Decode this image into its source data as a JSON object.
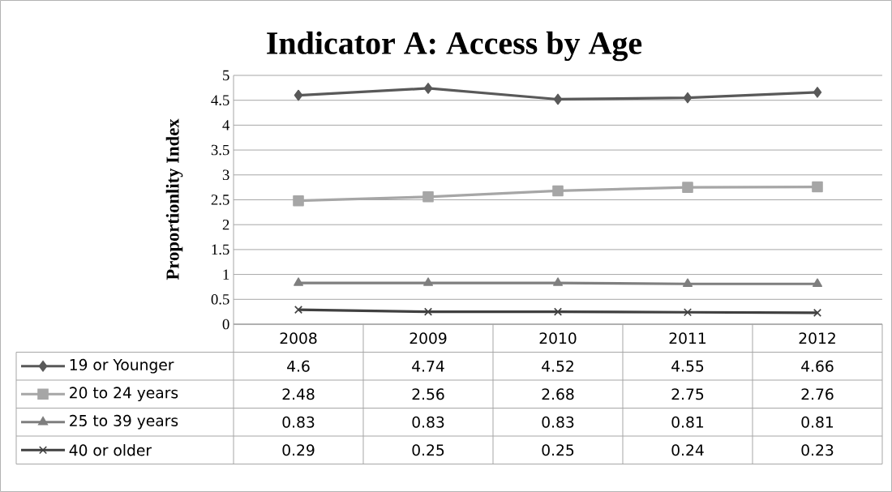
{
  "chart_data": {
    "type": "line",
    "title": "Indicator A: Access by Age",
    "ylabel": "Proportionlity Index",
    "categories": [
      "2008",
      "2009",
      "2010",
      "2011",
      "2012"
    ],
    "series": [
      {
        "name": "19 or Younger",
        "color": "#595959",
        "marker": "diamond",
        "values": [
          4.6,
          4.74,
          4.52,
          4.55,
          4.66
        ]
      },
      {
        "name": "20 to 24 years",
        "color": "#a6a6a6",
        "marker": "square",
        "values": [
          2.48,
          2.56,
          2.68,
          2.75,
          2.76
        ]
      },
      {
        "name": "25 to 39 years",
        "color": "#7f7f7f",
        "marker": "triangle",
        "values": [
          0.83,
          0.83,
          0.83,
          0.81,
          0.81
        ]
      },
      {
        "name": "40 or older",
        "color": "#404040",
        "marker": "cross",
        "values": [
          0.29,
          0.25,
          0.25,
          0.24,
          0.23
        ]
      }
    ],
    "ylim": [
      0,
      5
    ],
    "yticks": [
      0,
      0.5,
      1,
      1.5,
      2,
      2.5,
      3,
      3.5,
      4,
      4.5,
      5
    ],
    "grid": "y",
    "legend": "bottom",
    "data_labels": true
  }
}
